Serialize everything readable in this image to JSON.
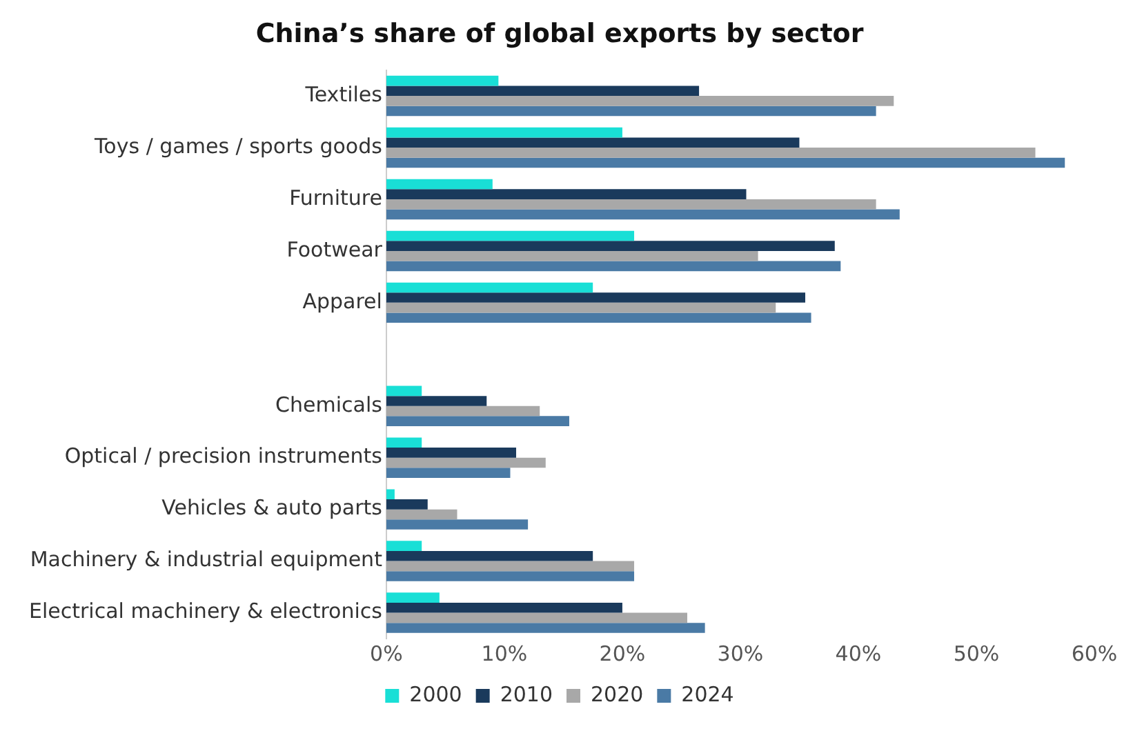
{
  "chart_data": {
    "type": "bar",
    "orientation": "horizontal",
    "title": "China’s share of global exports by sector",
    "categories": [
      "Textiles",
      "Toys / games / sports goods",
      "Furniture",
      "Footwear",
      "Apparel",
      null,
      "Chemicals",
      "Optical / precision instruments",
      "Vehicles & auto parts",
      "Machinery & industrial equipment",
      "Electrical machinery & electronics"
    ],
    "series": [
      {
        "name": "2000",
        "color": "#19dfd6",
        "values": [
          9.5,
          20,
          9,
          21,
          17.5,
          null,
          3,
          3,
          0.7,
          3,
          4.5
        ]
      },
      {
        "name": "2010",
        "color": "#1a3a5c",
        "values": [
          26.5,
          35,
          30.5,
          38,
          35.5,
          null,
          8.5,
          11,
          3.5,
          17.5,
          20
        ]
      },
      {
        "name": "2020",
        "color": "#a8a8a8",
        "values": [
          43,
          55,
          41.5,
          31.5,
          33,
          null,
          13,
          13.5,
          6,
          21,
          25.5
        ]
      },
      {
        "name": "2024",
        "color": "#4a7aa5",
        "values": [
          41.5,
          57.5,
          43.5,
          38.5,
          36,
          null,
          15.5,
          10.5,
          12,
          21,
          27
        ]
      }
    ],
    "xlim": [
      0,
      60
    ],
    "xticks": [
      {
        "value": 0,
        "label": "0%"
      },
      {
        "value": 10,
        "label": "10%"
      },
      {
        "value": 20,
        "label": "20%"
      },
      {
        "value": 30,
        "label": "30%"
      },
      {
        "value": 40,
        "label": "40%"
      },
      {
        "value": 50,
        "label": "50%"
      },
      {
        "value": 60,
        "label": "60%"
      }
    ],
    "grid": false,
    "legend": "bottom"
  }
}
